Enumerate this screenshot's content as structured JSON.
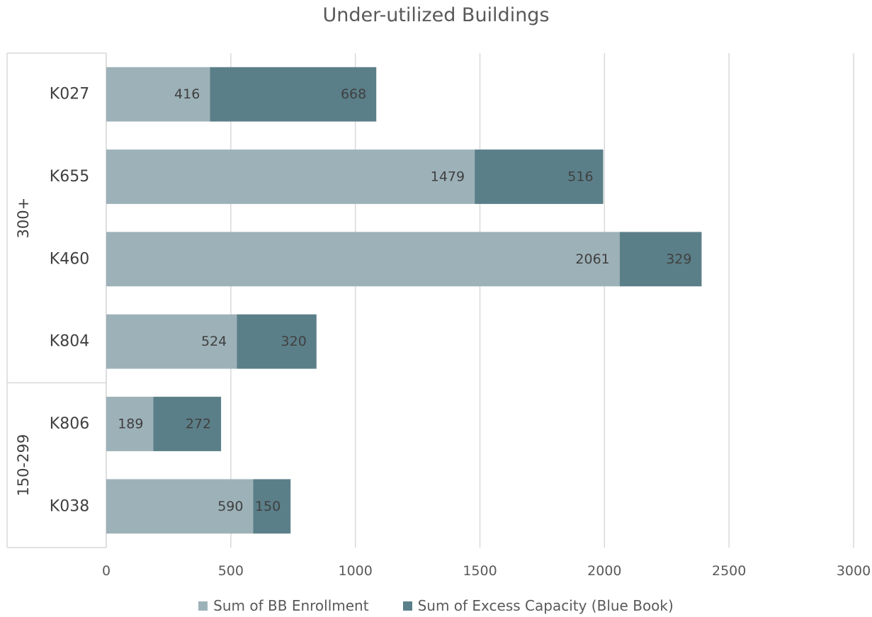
{
  "chart_data": {
    "type": "bar",
    "orientation": "horizontal",
    "stacked": true,
    "title": "Under-utilized Buildings",
    "xlabel": "",
    "ylabel": "",
    "xlim": [
      0,
      3000
    ],
    "x_ticks": [
      "0",
      "500",
      "1000",
      "1500",
      "2000",
      "2500",
      "3000"
    ],
    "groups": [
      {
        "label": "300+",
        "categories": [
          "K027",
          "K655",
          "K460",
          "K804"
        ]
      },
      {
        "label": "150-299",
        "categories": [
          "K806",
          "K038"
        ]
      }
    ],
    "categories": [
      "K027",
      "K655",
      "K460",
      "K804",
      "K806",
      "K038"
    ],
    "series": [
      {
        "name": "Sum of BB Enrollment",
        "color": "#9db1b8",
        "values": [
          416,
          1479,
          2061,
          524,
          189,
          590
        ],
        "labels": [
          "416",
          "1479",
          "2061",
          "524",
          "189",
          "590"
        ]
      },
      {
        "name": "Sum of Excess Capacity (Blue Book)",
        "color": "#5b7f89",
        "values": [
          668,
          516,
          329,
          320,
          272,
          150
        ],
        "labels": [
          "668",
          "516",
          "329",
          "320",
          "272",
          "150"
        ]
      }
    ],
    "grid": true,
    "legend": "bottom"
  }
}
